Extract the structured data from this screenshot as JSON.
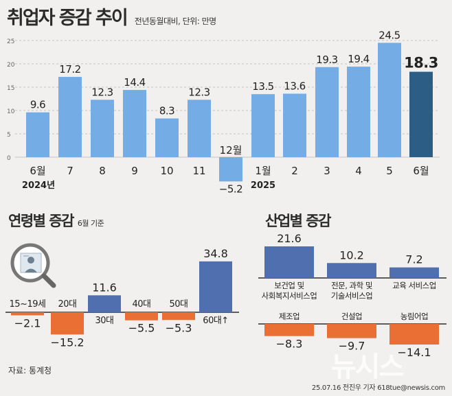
{
  "header": {
    "title": "취업자 증감 추이",
    "subtitle": "전년동월대비, 단위: 만명"
  },
  "age_section": {
    "title": "연령별 증감",
    "subtitle": "6월 기준"
  },
  "industry_section": {
    "title": "산업별 증감"
  },
  "footer": {
    "source": "자료: 통계청",
    "credit": "25.07.16 전진우 기자 618tue@newsis.com",
    "watermark": "뉴시스"
  },
  "icons": {
    "age_illustration": "magnifier-profile-icon"
  },
  "colors": {
    "bar_blue": "#74ade5",
    "bar_highlight": "#2c5d85",
    "bar_negative": "#e96f35",
    "bar_navy": "#4f6faf"
  },
  "chart_data": [
    {
      "type": "bar",
      "categories": [
        "6월",
        "7",
        "8",
        "9",
        "10",
        "11",
        "12월",
        "1월",
        "2",
        "3",
        "4",
        "5",
        "6월"
      ],
      "year_labels": [
        "2024년",
        "2025"
      ],
      "values": [
        9.6,
        17.2,
        12.3,
        14.4,
        8.3,
        12.3,
        -5.2,
        13.5,
        13.6,
        19.3,
        19.4,
        24.5,
        18.3
      ],
      "value_labels": [
        "9.6",
        "17.2",
        "12.3",
        "14.4",
        "8.3",
        "12.3",
        "−5.2",
        "13.5",
        "13.6",
        "19.3",
        "19.4",
        "24.5",
        "18.3"
      ],
      "yticks": [
        "0",
        "5",
        "10",
        "15",
        "20",
        "25"
      ],
      "ylim": [
        -7,
        25
      ],
      "grid": true
    },
    {
      "type": "bar",
      "categories": [
        "15~19세",
        "20대",
        "30대",
        "40대",
        "50대",
        "60대↑"
      ],
      "values": [
        -2.1,
        -15.2,
        11.6,
        -5.5,
        -5.3,
        34.8
      ],
      "value_labels": [
        "−2.1",
        "−15.2",
        "11.6",
        "−5.5",
        "−5.3",
        "34.8"
      ]
    },
    {
      "type": "bar",
      "categories": [
        "보건업 및 사회복지서비스업",
        "전문, 과학 및 기술서비스업",
        "교육 서비스업",
        "제조업",
        "건설업",
        "농림어업"
      ],
      "category_lines": [
        [
          "보건업 및",
          "사회복지서비스업"
        ],
        [
          "전문, 과학 및",
          "기술서비스업"
        ],
        [
          "교육 서비스업"
        ],
        [
          "제조업"
        ],
        [
          "건설업"
        ],
        [
          "농림어업"
        ]
      ],
      "values": [
        21.6,
        10.2,
        7.2,
        -8.3,
        -9.7,
        -14.1
      ],
      "value_labels": [
        "21.6",
        "10.2",
        "7.2",
        "−8.3",
        "−9.7",
        "−14.1"
      ]
    }
  ]
}
